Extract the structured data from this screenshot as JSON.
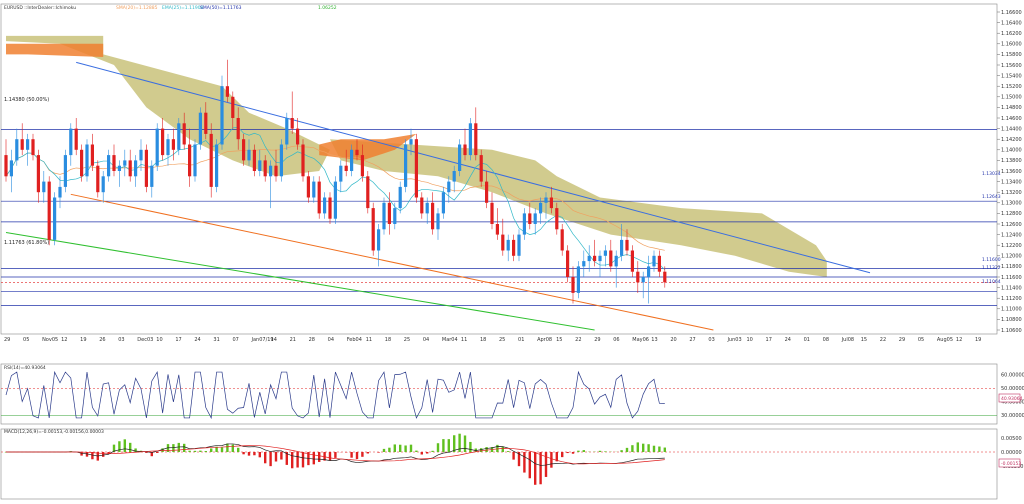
{
  "header": {
    "symbol": "EURUSD ::InterDealer::Ichimoku",
    "ind": "SMA(20)=1.12885",
    "ind2": "EMA(25)=1.11904",
    "ind3": "SMA(50)=1.11763",
    "last": "1.06252"
  },
  "colors": {
    "bull": "#2a8de0",
    "bear": "#e02020",
    "cloud": "#c9c27a",
    "cloud_bear": "#f08030",
    "blue_line": "#3a6ee0",
    "orange_line": "#f07020",
    "green_line": "#30c030",
    "ema": "#f0a060",
    "sma": "#30b8c8",
    "hline": "#2233aa",
    "rsi": "#2a3a8a",
    "macd": "#222222",
    "signal": "#e02020",
    "hist_pos": "#60c020",
    "hist_neg": "#e02020"
  },
  "price_axis": {
    "ticks": [
      "1.16600",
      "1.16400",
      "1.16200",
      "1.16000",
      "1.15800",
      "1.15600",
      "1.15400",
      "1.15200",
      "1.15000",
      "1.14800",
      "1.14600",
      "1.14400",
      "1.14200",
      "1.14000",
      "1.13800",
      "1.13600",
      "1.13400",
      "1.13200",
      "1.13000",
      "1.12800",
      "1.12600",
      "1.12400",
      "1.12200",
      "1.12000",
      "1.11800",
      "1.11600",
      "1.11400",
      "1.11200",
      "1.11000",
      "1.10800",
      "1.10600"
    ]
  },
  "date_axis": {
    "labels": [
      "29",
      "05",
      "Nov05",
      "12",
      "19",
      "26",
      "03",
      "Dec03",
      "10",
      "17",
      "24",
      "31",
      "07",
      "Jan07/19",
      "14",
      "21",
      "28",
      "04",
      "Feb04",
      "11",
      "18",
      "25",
      "04",
      "Mar04",
      "11",
      "18",
      "25",
      "01",
      "Apr08",
      "15",
      "22",
      "29",
      "06",
      "May06",
      "13",
      "20",
      "27",
      "03",
      "Jun03",
      "10",
      "17",
      "24",
      "01",
      "08",
      "Jul08",
      "15",
      "22",
      "29",
      "05",
      "Aug05",
      "12",
      "19"
    ]
  },
  "annotations": {
    "fib1": "1.14380 (50.00%)",
    "fib2": "1.11763 (61.80%)",
    "lvl1": "1.13034",
    "lvl2": "1.12643",
    "lvl3": "1.11600",
    "lvl4": "1.11332",
    "lvl5": "1.11064"
  },
  "rsi": {
    "label": "RSI(14)=40.93064",
    "ticks": [
      "60.00000",
      "50.00000",
      "40.00000",
      "30.00000"
    ],
    "current": "40.93064"
  },
  "macd": {
    "label": "MACD(12,26,9)=-0.00153,-0.00156,0.00003",
    "ticks": [
      "0.00500",
      "0.00000",
      "-0.00500"
    ],
    "current": "-0.00153"
  },
  "chart_data": {
    "type": "candlestick",
    "title": "EURUSD Daily",
    "y_range": [
      1.106,
      1.166
    ],
    "resistance_levels": [
      1.1438,
      1.1303,
      1.1264,
      1.1176,
      1.116,
      1.1133,
      1.1106
    ],
    "trendlines": {
      "upper": {
        "from": [
          13,
          1.1565
        ],
        "to": [
          160,
          1.1168
        ]
      },
      "lower": {
        "from": [
          12,
          1.1316
        ],
        "to": [
          131,
          1.106
        ]
      },
      "long": {
        "from": [
          0,
          1.1244
        ],
        "to": [
          109,
          1.106
        ]
      }
    },
    "candles": [
      [
        1.139,
        1.142,
        1.134,
        1.135
      ],
      [
        1.135,
        1.14,
        1.132,
        1.138
      ],
      [
        1.138,
        1.144,
        1.137,
        1.142
      ],
      [
        1.142,
        1.145,
        1.139,
        1.14
      ],
      [
        1.14,
        1.143,
        1.137,
        1.142
      ],
      [
        1.142,
        1.143,
        1.138,
        1.139
      ],
      [
        1.139,
        1.14,
        1.13,
        1.132
      ],
      [
        1.132,
        1.136,
        1.13,
        1.134
      ],
      [
        1.134,
        1.135,
        1.122,
        1.123
      ],
      [
        1.123,
        1.132,
        1.122,
        1.131
      ],
      [
        1.131,
        1.135,
        1.129,
        1.133
      ],
      [
        1.133,
        1.14,
        1.132,
        1.139
      ],
      [
        1.139,
        1.145,
        1.137,
        1.144
      ],
      [
        1.144,
        1.146,
        1.139,
        1.14
      ],
      [
        1.14,
        1.141,
        1.134,
        1.135
      ],
      [
        1.135,
        1.142,
        1.134,
        1.141
      ],
      [
        1.141,
        1.143,
        1.136,
        1.137
      ],
      [
        1.137,
        1.138,
        1.131,
        1.132
      ],
      [
        1.132,
        1.136,
        1.13,
        1.135
      ],
      [
        1.135,
        1.14,
        1.134,
        1.139
      ],
      [
        1.139,
        1.141,
        1.135,
        1.136
      ],
      [
        1.136,
        1.138,
        1.133,
        1.137
      ],
      [
        1.137,
        1.14,
        1.135,
        1.138
      ],
      [
        1.138,
        1.14,
        1.134,
        1.135
      ],
      [
        1.135,
        1.139,
        1.133,
        1.138
      ],
      [
        1.138,
        1.142,
        1.136,
        1.14
      ],
      [
        1.14,
        1.141,
        1.132,
        1.133
      ],
      [
        1.133,
        1.138,
        1.131,
        1.137
      ],
      [
        1.137,
        1.145,
        1.136,
        1.144
      ],
      [
        1.144,
        1.146,
        1.138,
        1.139
      ],
      [
        1.139,
        1.143,
        1.137,
        1.142
      ],
      [
        1.142,
        1.144,
        1.138,
        1.14
      ],
      [
        1.14,
        1.146,
        1.139,
        1.145
      ],
      [
        1.145,
        1.147,
        1.14,
        1.141
      ],
      [
        1.141,
        1.144,
        1.133,
        1.135
      ],
      [
        1.135,
        1.142,
        1.134,
        1.141
      ],
      [
        1.141,
        1.148,
        1.14,
        1.147
      ],
      [
        1.147,
        1.149,
        1.142,
        1.143
      ],
      [
        1.143,
        1.145,
        1.131,
        1.133
      ],
      [
        1.133,
        1.142,
        1.132,
        1.141
      ],
      [
        1.141,
        1.154,
        1.14,
        1.152
      ],
      [
        1.152,
        1.157,
        1.149,
        1.15
      ],
      [
        1.15,
        1.151,
        1.144,
        1.146
      ],
      [
        1.146,
        1.148,
        1.14,
        1.142
      ],
      [
        1.142,
        1.143,
        1.137,
        1.138
      ],
      [
        1.138,
        1.142,
        1.137,
        1.14
      ],
      [
        1.14,
        1.141,
        1.135,
        1.136
      ],
      [
        1.136,
        1.14,
        1.135,
        1.138
      ],
      [
        1.138,
        1.139,
        1.134,
        1.135
      ],
      [
        1.135,
        1.138,
        1.129,
        1.137
      ],
      [
        1.137,
        1.14,
        1.134,
        1.135
      ],
      [
        1.135,
        1.142,
        1.134,
        1.141
      ],
      [
        1.141,
        1.147,
        1.14,
        1.146
      ],
      [
        1.146,
        1.151,
        1.143,
        1.144
      ],
      [
        1.144,
        1.146,
        1.14,
        1.141
      ],
      [
        1.141,
        1.142,
        1.134,
        1.135
      ],
      [
        1.135,
        1.136,
        1.13,
        1.131
      ],
      [
        1.131,
        1.135,
        1.13,
        1.134
      ],
      [
        1.134,
        1.135,
        1.127,
        1.128
      ],
      [
        1.128,
        1.132,
        1.127,
        1.131
      ],
      [
        1.131,
        1.132,
        1.126,
        1.127
      ],
      [
        1.127,
        1.135,
        1.126,
        1.134
      ],
      [
        1.134,
        1.138,
        1.132,
        1.137
      ],
      [
        1.137,
        1.14,
        1.135,
        1.136
      ],
      [
        1.136,
        1.141,
        1.135,
        1.14
      ],
      [
        1.14,
        1.142,
        1.138,
        1.139
      ],
      [
        1.139,
        1.141,
        1.134,
        1.135
      ],
      [
        1.135,
        1.136,
        1.128,
        1.129
      ],
      [
        1.129,
        1.13,
        1.12,
        1.121
      ],
      [
        1.121,
        1.126,
        1.118,
        1.125
      ],
      [
        1.125,
        1.131,
        1.124,
        1.13
      ],
      [
        1.13,
        1.132,
        1.124,
        1.126
      ],
      [
        1.126,
        1.13,
        1.125,
        1.129
      ],
      [
        1.129,
        1.134,
        1.128,
        1.133
      ],
      [
        1.133,
        1.142,
        1.132,
        1.141
      ],
      [
        1.141,
        1.144,
        1.139,
        1.142
      ],
      [
        1.142,
        1.143,
        1.13,
        1.131
      ],
      [
        1.131,
        1.132,
        1.127,
        1.128
      ],
      [
        1.128,
        1.131,
        1.126,
        1.13
      ],
      [
        1.13,
        1.132,
        1.124,
        1.125
      ],
      [
        1.125,
        1.129,
        1.123,
        1.128
      ],
      [
        1.128,
        1.133,
        1.127,
        1.132
      ],
      [
        1.132,
        1.135,
        1.13,
        1.134
      ],
      [
        1.134,
        1.137,
        1.132,
        1.136
      ],
      [
        1.136,
        1.142,
        1.135,
        1.141
      ],
      [
        1.141,
        1.144,
        1.138,
        1.139
      ],
      [
        1.139,
        1.146,
        1.138,
        1.145
      ],
      [
        1.145,
        1.148,
        1.138,
        1.139
      ],
      [
        1.139,
        1.14,
        1.133,
        1.134
      ],
      [
        1.134,
        1.136,
        1.129,
        1.13
      ],
      [
        1.13,
        1.132,
        1.125,
        1.126
      ],
      [
        1.126,
        1.129,
        1.123,
        1.124
      ],
      [
        1.124,
        1.127,
        1.12,
        1.121
      ],
      [
        1.121,
        1.124,
        1.119,
        1.123
      ],
      [
        1.123,
        1.124,
        1.119,
        1.12
      ],
      [
        1.12,
        1.125,
        1.119,
        1.124
      ],
      [
        1.124,
        1.129,
        1.123,
        1.128
      ],
      [
        1.128,
        1.13,
        1.125,
        1.126
      ],
      [
        1.126,
        1.129,
        1.124,
        1.128
      ],
      [
        1.128,
        1.131,
        1.126,
        1.13
      ],
      [
        1.13,
        1.132,
        1.127,
        1.131
      ],
      [
        1.131,
        1.133,
        1.128,
        1.129
      ],
      [
        1.129,
        1.13,
        1.124,
        1.125
      ],
      [
        1.125,
        1.126,
        1.12,
        1.121
      ],
      [
        1.121,
        1.122,
        1.115,
        1.116
      ],
      [
        1.116,
        1.118,
        1.111,
        1.113
      ],
      [
        1.113,
        1.119,
        1.112,
        1.118
      ],
      [
        1.118,
        1.121,
        1.116,
        1.119
      ],
      [
        1.119,
        1.122,
        1.117,
        1.12
      ],
      [
        1.12,
        1.123,
        1.118,
        1.119
      ],
      [
        1.119,
        1.121,
        1.116,
        1.12
      ],
      [
        1.12,
        1.122,
        1.118,
        1.121
      ],
      [
        1.121,
        1.123,
        1.117,
        1.118
      ],
      [
        1.118,
        1.121,
        1.114,
        1.12
      ],
      [
        1.12,
        1.126,
        1.119,
        1.123
      ],
      [
        1.123,
        1.125,
        1.12,
        1.121
      ],
      [
        1.121,
        1.122,
        1.116,
        1.117
      ],
      [
        1.117,
        1.119,
        1.113,
        1.115
      ],
      [
        1.115,
        1.117,
        1.112,
        1.116
      ],
      [
        1.116,
        1.12,
        1.111,
        1.118
      ],
      [
        1.118,
        1.121,
        1.117,
        1.12
      ],
      [
        1.12,
        1.121,
        1.116,
        1.117
      ],
      [
        1.117,
        1.118,
        1.114,
        1.115
      ]
    ]
  }
}
